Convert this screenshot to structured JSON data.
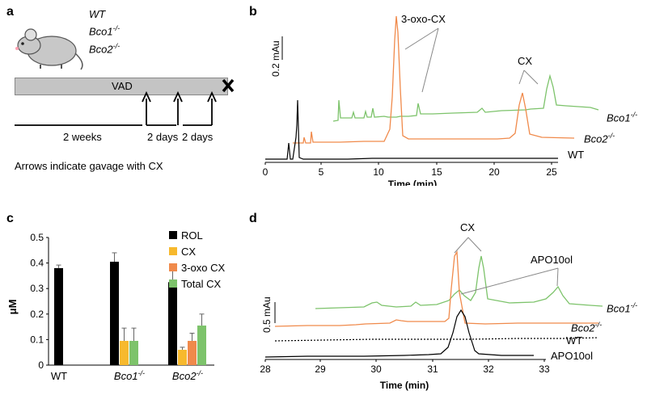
{
  "figure": {
    "panel_a": {
      "label": "a",
      "genotypes": [
        "WT",
        "Bco1",
        "Bco2"
      ],
      "genotype_sup": "-/-",
      "diet_label": "VAD",
      "periods": [
        "2 weeks",
        "2 days",
        "2 days"
      ],
      "note": "Arrows indicate gavage with CX"
    },
    "panel_b": {
      "label": "b",
      "scale_bar": "0.2 mAu",
      "xlabel": "Time (min)",
      "xticks": [
        "0",
        "5",
        "10",
        "15",
        "20",
        "25"
      ],
      "annotations": {
        "oxo": "3-oxo-CX",
        "cx": "CX"
      },
      "traces": [
        {
          "name": "Bco1",
          "sup": "-/-",
          "color": "#7dc36b"
        },
        {
          "name": "Bco2",
          "sup": "-/-",
          "color": "#f08a4b"
        },
        {
          "name": "WT",
          "sup": "",
          "color": "#000000"
        }
      ]
    },
    "panel_c": {
      "label": "c",
      "ylabel": "μM",
      "yticks": [
        "0",
        "0.1",
        "0.2",
        "0.3",
        "0.4",
        "0.5"
      ],
      "groups": [
        {
          "name": "WT",
          "sup": "",
          "italic": false
        },
        {
          "name": "Bco1",
          "sup": "-/-",
          "italic": true
        },
        {
          "name": "Bco2",
          "sup": "-/-",
          "italic": true
        }
      ],
      "legend": [
        "ROL",
        "CX",
        "3-oxo CX",
        "Total CX"
      ]
    },
    "panel_d": {
      "label": "d",
      "scale_bar": "0.5 mAu",
      "xlabel": "Time (min)",
      "xticks": [
        "28",
        "29",
        "30",
        "31",
        "32",
        "33"
      ],
      "annotations": {
        "cx": "CX",
        "apo": "APO10ol"
      },
      "traces": [
        {
          "name": "Bco1",
          "sup": "-/-",
          "color": "#7dc36b"
        },
        {
          "name": "Bco2",
          "sup": "-/-",
          "color": "#f08a4b"
        },
        {
          "name": "WT",
          "sup": "",
          "color": "#000000"
        },
        {
          "name": "APO10ol",
          "sup": "",
          "color": "#000000"
        }
      ]
    }
  },
  "chart_data": {
    "type": "bar",
    "categories": [
      "WT",
      "Bco1-/-",
      "Bco2-/-"
    ],
    "ylim": [
      0,
      0.5
    ],
    "ylabel": "μM",
    "grid": false,
    "legend_position": "top-right",
    "series": [
      {
        "name": "ROL",
        "color": "#000000",
        "values": [
          0.38,
          0.405,
          0.325
        ],
        "errors": [
          0.012,
          0.035,
          0.07
        ]
      },
      {
        "name": "CX",
        "color": "#f7b92d",
        "values": [
          null,
          0.095,
          0.06
        ],
        "errors": [
          null,
          0.05,
          0.01
        ]
      },
      {
        "name": "3-oxo CX",
        "color": "#f08a4b",
        "values": [
          null,
          null,
          0.095
        ],
        "errors": [
          null,
          null,
          0.03
        ]
      },
      {
        "name": "Total CX",
        "color": "#7dc36b",
        "values": [
          null,
          0.095,
          0.155
        ],
        "errors": [
          null,
          0.05,
          0.045
        ]
      }
    ]
  }
}
